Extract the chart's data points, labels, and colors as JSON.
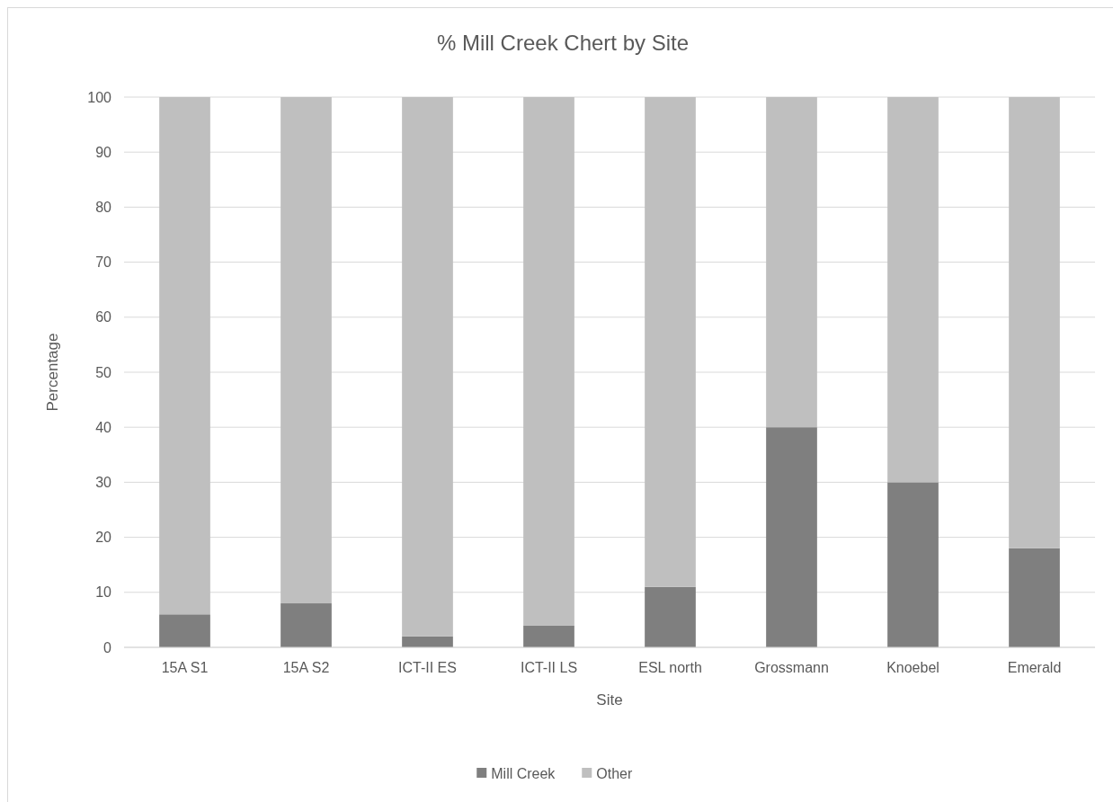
{
  "chart_data": {
    "type": "bar",
    "title": "% Mill Creek Chert by Site",
    "xlabel": "Site",
    "ylabel": "Percentage",
    "categories": [
      "15A S1",
      "15A S2",
      "ICT-II ES",
      "ICT-II LS",
      "ESL north",
      "Grossmann",
      "Knoebel",
      "Emerald"
    ],
    "stacked": true,
    "series": [
      {
        "name": "Mill Creek",
        "color": "#7f7f7f",
        "values": [
          6,
          8,
          2,
          4,
          11,
          40,
          30,
          18
        ]
      },
      {
        "name": "Other",
        "color": "#bfbfbf",
        "values": [
          94,
          92,
          98,
          96,
          89,
          60,
          70,
          82
        ]
      }
    ],
    "ylim": [
      0,
      100
    ],
    "yticks": [
      0,
      10,
      20,
      30,
      40,
      50,
      60,
      70,
      80,
      90,
      100
    ],
    "grid": "y",
    "legend": "bottom"
  }
}
